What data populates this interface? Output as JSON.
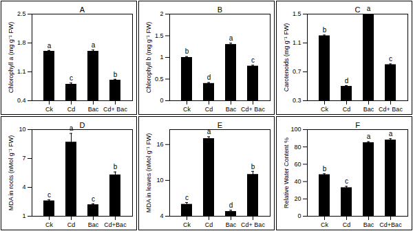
{
  "chart_data": [
    {
      "type": "bar",
      "title": "A",
      "y_label": "Chlorophyll a (mg g⁻¹ FW)",
      "categories": [
        "Ck",
        "Cd",
        "Bac",
        "Cd+ Bac"
      ],
      "values": [
        1.6,
        0.8,
        1.6,
        0.9
      ],
      "errors": [
        0.02,
        0.03,
        0.03,
        0.02
      ],
      "annotations": [
        "a",
        "c",
        "a",
        "b"
      ],
      "color": "#000000",
      "ylim": [
        0.4,
        2.5
      ],
      "yticks": [
        0.4,
        1.1,
        1.8,
        2.5
      ],
      "grid": false
    },
    {
      "type": "bar",
      "title": "B",
      "y_label": "Chlorophyll b (mg g⁻¹ FW)",
      "categories": [
        "Ck",
        "Cd",
        "Bac",
        "Cd+ Bac"
      ],
      "values": [
        1.0,
        0.4,
        1.3,
        0.8
      ],
      "errors": [
        0.02,
        0.02,
        0.03,
        0.02
      ],
      "annotations": [
        "b",
        "d",
        "a",
        "c"
      ],
      "color": "#000000",
      "ylim": [
        0,
        2
      ],
      "yticks": [
        0,
        0.5,
        1,
        1.5,
        2
      ],
      "grid": false
    },
    {
      "type": "bar",
      "title": "C",
      "y_label": "Carotenoids (mg g⁻¹ FW)",
      "categories": [
        "Ck",
        "Cd",
        "Bac",
        "Cd+ Bac"
      ],
      "values": [
        1.2,
        0.5,
        1.5,
        0.8
      ],
      "errors": [
        0.01,
        0.01,
        0.01,
        0.01
      ],
      "annotations": [
        "b",
        "d",
        "a",
        "c"
      ],
      "color": "#000000",
      "ylim": [
        0.3,
        1.5
      ],
      "yticks": [
        0.3,
        0.7,
        1.1,
        1.5
      ],
      "grid": false
    },
    {
      "type": "bar",
      "title": "D",
      "y_label": "MDA in roots (nMol g⁻¹ FW)",
      "categories": [
        "Ck",
        "Cd",
        "Bac",
        "Cd+Bac"
      ],
      "values": [
        2.6,
        8.7,
        2.2,
        5.3
      ],
      "errors": [
        0.1,
        0.9,
        0.1,
        0.3
      ],
      "annotations": [
        "c",
        "a",
        "c",
        "b"
      ],
      "color": "#000000",
      "ylim": [
        1,
        10
      ],
      "yticks": [
        1,
        4,
        7,
        10
      ],
      "grid": false
    },
    {
      "type": "bar",
      "title": "E",
      "y_label": "MDA in leaves (nMol g⁻¹ FW)",
      "categories": [
        "Ck",
        "Cd",
        "Bac",
        "Cd+ Bac"
      ],
      "values": [
        6,
        17,
        4.8,
        11
      ],
      "errors": [
        0.3,
        0.3,
        0.2,
        0.5
      ],
      "annotations": [
        "c",
        "a",
        "d",
        "b"
      ],
      "color": "#000000",
      "ylim": [
        4,
        18.5
      ],
      "yticks": [
        4,
        10,
        16
      ],
      "grid": false
    },
    {
      "type": "bar",
      "title": "F",
      "y_label": "Relative Water Content %",
      "categories": [
        "Ck",
        "Cd",
        "Bac",
        "Cd+Bac"
      ],
      "values": [
        48,
        33,
        85,
        88
      ],
      "errors": [
        1,
        1.5,
        1,
        1.5
      ],
      "annotations": [
        "b",
        "c",
        "a",
        "a"
      ],
      "color": "#000000",
      "ylim": [
        0,
        100
      ],
      "yticks": [
        0,
        20,
        40,
        60,
        80,
        100
      ],
      "grid": false
    }
  ]
}
